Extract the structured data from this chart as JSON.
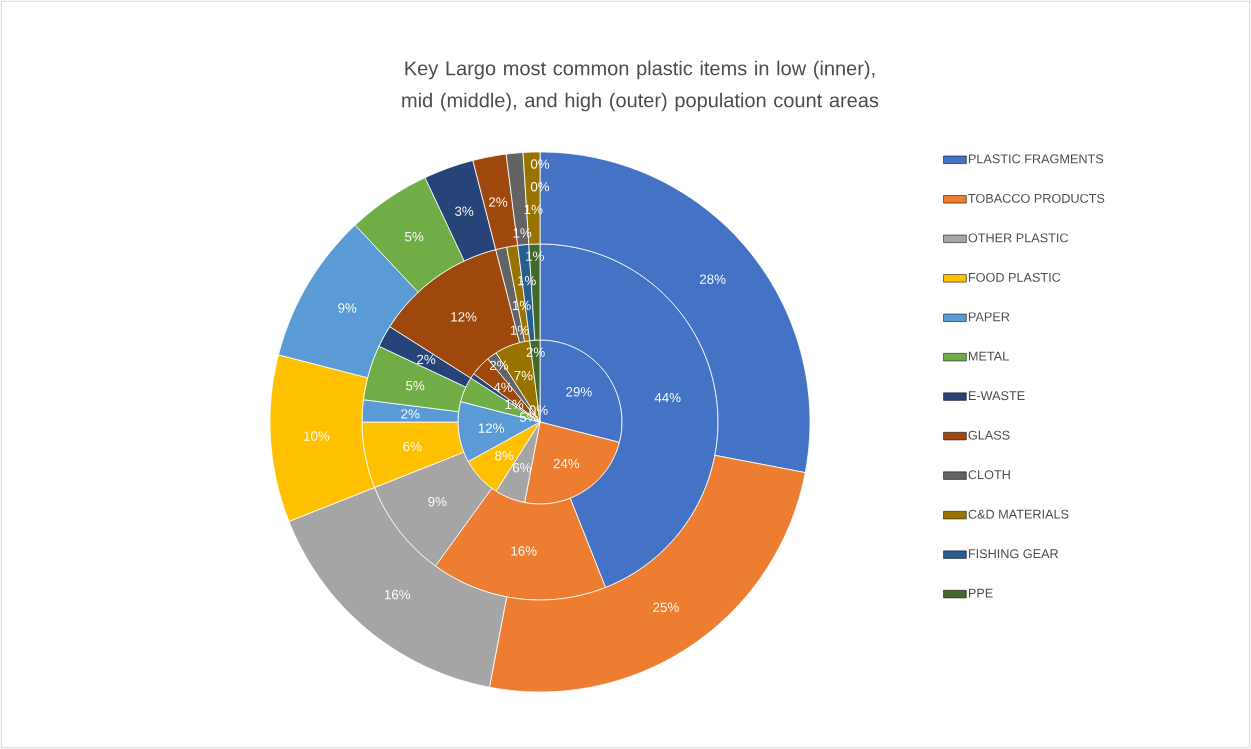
{
  "chart_data": {
    "type": "donut",
    "title": "Key Largo most common plastic items in low (inner), mid (middle), and high (outer) population count areas",
    "categories": [
      "PLASTIC FRAGMENTS",
      "TOBACCO PRODUCTS",
      "OTHER PLASTIC",
      "FOOD PLASTIC",
      "PAPER",
      "METAL",
      "E-WASTE",
      "GLASS",
      "CLOTH",
      "C&D MATERIALS",
      "FISHING GEAR",
      "PPE"
    ],
    "colors": [
      "#4472c4",
      "#ed7d31",
      "#a5a5a5",
      "#ffc000",
      "#5b9bd5",
      "#70ad47",
      "#264478",
      "#9e480e",
      "#636363",
      "#997300",
      "#255e91",
      "#43682b"
    ],
    "series": [
      {
        "values": [
          29,
          24,
          6,
          8,
          12,
          5,
          1,
          4,
          2,
          7,
          0,
          2
        ],
        "value_labels": [
          "29%",
          "24%",
          "6%",
          "8%",
          "12%",
          "5%",
          "1%",
          "4%",
          "2%",
          "7%",
          "0%",
          "2%"
        ]
      },
      {
        "values": [
          44,
          16,
          9,
          6,
          2,
          5,
          2,
          12,
          1,
          1,
          1,
          1
        ],
        "value_labels": [
          "44%",
          "16%",
          "9%",
          "6%",
          "2%",
          "5%",
          "2%",
          "12%",
          "1%",
          "1%",
          "1%",
          "1%"
        ]
      },
      {
        "values": [
          28,
          25,
          16,
          10,
          9,
          5,
          3,
          2,
          1,
          1,
          0,
          0
        ],
        "value_labels": [
          "28%",
          "25%",
          "16%",
          "10%",
          "9%",
          "5%",
          "3%",
          "2%",
          "1%",
          "1%",
          "0%",
          "0%"
        ]
      }
    ],
    "legend": "right"
  }
}
